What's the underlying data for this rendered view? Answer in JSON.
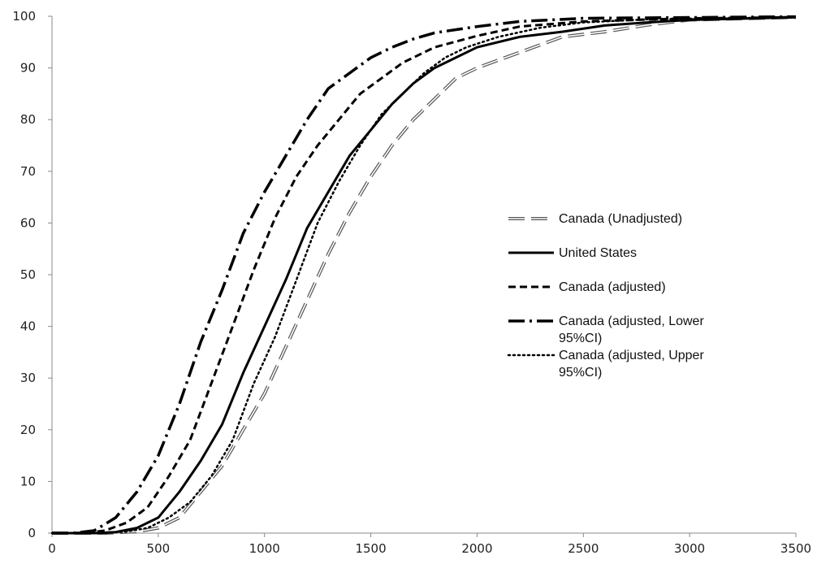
{
  "chart_data": {
    "type": "line",
    "title": "",
    "xlabel": "",
    "ylabel": "",
    "xlim": [
      0,
      3500
    ],
    "ylim": [
      0,
      100
    ],
    "x_ticks": [
      0,
      500,
      1000,
      1500,
      2000,
      2500,
      3000,
      3500
    ],
    "y_ticks": [
      0,
      10,
      20,
      30,
      40,
      50,
      60,
      70,
      80,
      90,
      100
    ],
    "grid": false,
    "legend_position": "right-center",
    "series": [
      {
        "name": "Canada (Unadjusted)",
        "style": "outlined-dash",
        "color": "#555555",
        "points": [
          [
            0,
            0
          ],
          [
            250,
            0
          ],
          [
            400,
            0.3
          ],
          [
            500,
            1
          ],
          [
            600,
            3
          ],
          [
            700,
            8
          ],
          [
            800,
            13
          ],
          [
            900,
            20
          ],
          [
            1000,
            27
          ],
          [
            1100,
            36
          ],
          [
            1200,
            45
          ],
          [
            1300,
            54
          ],
          [
            1400,
            62
          ],
          [
            1500,
            69
          ],
          [
            1600,
            75
          ],
          [
            1700,
            80
          ],
          [
            1800,
            84
          ],
          [
            1900,
            88
          ],
          [
            2000,
            90
          ],
          [
            2200,
            93
          ],
          [
            2400,
            96
          ],
          [
            2600,
            97
          ],
          [
            2800,
            98.3
          ],
          [
            3000,
            99.3
          ],
          [
            3500,
            99.8
          ]
        ]
      },
      {
        "name": "United States",
        "style": "solid",
        "color": "#000000",
        "points": [
          [
            0,
            0
          ],
          [
            200,
            0
          ],
          [
            300,
            0.2
          ],
          [
            400,
            1
          ],
          [
            500,
            3
          ],
          [
            600,
            8
          ],
          [
            700,
            14
          ],
          [
            800,
            21
          ],
          [
            900,
            31
          ],
          [
            1000,
            40
          ],
          [
            1100,
            49
          ],
          [
            1200,
            59
          ],
          [
            1300,
            66
          ],
          [
            1400,
            73
          ],
          [
            1500,
            78
          ],
          [
            1600,
            83
          ],
          [
            1700,
            87
          ],
          [
            1800,
            90
          ],
          [
            1900,
            92
          ],
          [
            2000,
            94
          ],
          [
            2200,
            96
          ],
          [
            2400,
            97
          ],
          [
            2600,
            98.2
          ],
          [
            2800,
            98.8
          ],
          [
            3000,
            99.3
          ],
          [
            3500,
            99.8
          ]
        ]
      },
      {
        "name": "Canada (adjusted)",
        "style": "dashed",
        "color": "#000000",
        "points": [
          [
            0,
            0
          ],
          [
            150,
            0
          ],
          [
            250,
            0.5
          ],
          [
            350,
            2
          ],
          [
            450,
            5
          ],
          [
            550,
            11
          ],
          [
            650,
            18
          ],
          [
            750,
            29
          ],
          [
            850,
            40
          ],
          [
            950,
            51
          ],
          [
            1050,
            61
          ],
          [
            1150,
            69
          ],
          [
            1250,
            75
          ],
          [
            1350,
            80
          ],
          [
            1450,
            85
          ],
          [
            1550,
            88
          ],
          [
            1650,
            91
          ],
          [
            1800,
            94
          ],
          [
            2000,
            96.2
          ],
          [
            2200,
            98
          ],
          [
            2500,
            99
          ],
          [
            3000,
            99.6
          ],
          [
            3500,
            99.8
          ]
        ]
      },
      {
        "name": "Canada (adjusted, Lower 95%CI)",
        "style": "dash-dot",
        "color": "#000000",
        "points": [
          [
            0,
            0
          ],
          [
            100,
            0
          ],
          [
            200,
            0.5
          ],
          [
            300,
            3
          ],
          [
            400,
            8
          ],
          [
            500,
            15
          ],
          [
            600,
            25
          ],
          [
            700,
            37
          ],
          [
            800,
            47
          ],
          [
            900,
            58
          ],
          [
            1000,
            66
          ],
          [
            1100,
            73
          ],
          [
            1200,
            80
          ],
          [
            1300,
            86
          ],
          [
            1400,
            89
          ],
          [
            1500,
            92
          ],
          [
            1600,
            94
          ],
          [
            1700,
            95.6
          ],
          [
            1800,
            96.8
          ],
          [
            2000,
            98
          ],
          [
            2200,
            99
          ],
          [
            2500,
            99.6
          ],
          [
            3500,
            99.9
          ]
        ]
      },
      {
        "name": "Canada (adjusted, Upper 95%CI)",
        "style": "dotted",
        "color": "#000000",
        "points": [
          [
            0,
            0
          ],
          [
            250,
            0
          ],
          [
            350,
            0.3
          ],
          [
            450,
            1
          ],
          [
            550,
            3
          ],
          [
            650,
            6
          ],
          [
            750,
            11
          ],
          [
            850,
            18
          ],
          [
            950,
            29
          ],
          [
            1050,
            38
          ],
          [
            1150,
            49
          ],
          [
            1250,
            60
          ],
          [
            1350,
            68
          ],
          [
            1450,
            75
          ],
          [
            1550,
            81
          ],
          [
            1650,
            85
          ],
          [
            1750,
            89
          ],
          [
            1850,
            92
          ],
          [
            1950,
            94
          ],
          [
            2100,
            96
          ],
          [
            2300,
            97.8
          ],
          [
            2500,
            98.8
          ],
          [
            2800,
            99.4
          ],
          [
            3500,
            99.8
          ]
        ]
      }
    ]
  }
}
